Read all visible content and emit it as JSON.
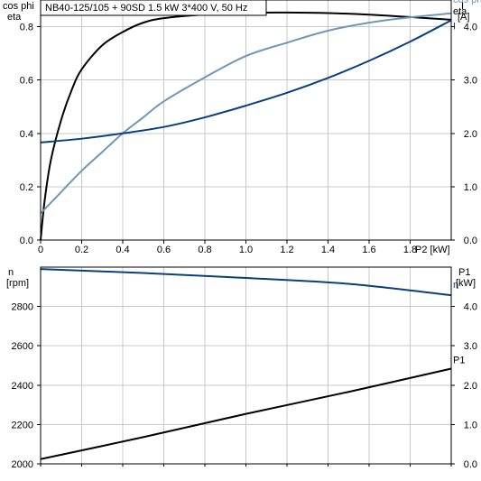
{
  "title": "NB40-125/105 + 90SD   1.5 kW   3*400 V, 50 Hz",
  "chart_data": [
    {
      "type": "line",
      "x_label": "P2 [kW]",
      "x_ticks": [
        "0",
        "0.2",
        "0.4",
        "0.6",
        "0.8",
        "1.0",
        "1.2",
        "1.4",
        "1.6",
        "1.8"
      ],
      "xlim": [
        0,
        2.0
      ],
      "left_axis": {
        "label_line1": "cos phi",
        "label_line2": "eta",
        "ticks": [
          "0.0",
          "0.2",
          "0.4",
          "0.6",
          "0.8"
        ],
        "lim": [
          0,
          0.9
        ]
      },
      "right_axis": {
        "label_line1": "I",
        "label_line2": "[A]",
        "ticks": [
          "0.0",
          "1.0",
          "2.0",
          "3.0",
          "4.0"
        ],
        "lim": [
          0,
          4.5
        ]
      },
      "series": [
        {
          "name": "eta",
          "axis": "left",
          "color": "#000000",
          "points": [
            [
              0,
              0
            ],
            [
              0.02,
              0.15
            ],
            [
              0.05,
              0.3
            ],
            [
              0.1,
              0.45
            ],
            [
              0.15,
              0.56
            ],
            [
              0.2,
              0.64
            ],
            [
              0.3,
              0.73
            ],
            [
              0.4,
              0.78
            ],
            [
              0.5,
              0.815
            ],
            [
              0.6,
              0.832
            ],
            [
              0.8,
              0.846
            ],
            [
              1.0,
              0.852
            ],
            [
              1.2,
              0.853
            ],
            [
              1.4,
              0.851
            ],
            [
              1.6,
              0.845
            ],
            [
              1.8,
              0.836
            ],
            [
              2.0,
              0.826
            ]
          ]
        },
        {
          "name": "cos phi",
          "axis": "left",
          "color": "#7096b8",
          "points": [
            [
              0,
              0.1
            ],
            [
              0.1,
              0.18
            ],
            [
              0.2,
              0.26
            ],
            [
              0.3,
              0.33
            ],
            [
              0.4,
              0.4
            ],
            [
              0.5,
              0.46
            ],
            [
              0.6,
              0.52
            ],
            [
              0.8,
              0.61
            ],
            [
              1.0,
              0.69
            ],
            [
              1.2,
              0.74
            ],
            [
              1.4,
              0.785
            ],
            [
              1.6,
              0.815
            ],
            [
              1.8,
              0.835
            ],
            [
              2.0,
              0.85
            ]
          ]
        },
        {
          "name": "I",
          "axis": "right",
          "color": "#0a3f7f",
          "points": [
            [
              0,
              1.83
            ],
            [
              0.2,
              1.9
            ],
            [
              0.4,
              2.0
            ],
            [
              0.6,
              2.12
            ],
            [
              0.8,
              2.3
            ],
            [
              1.0,
              2.52
            ],
            [
              1.2,
              2.76
            ],
            [
              1.4,
              3.04
            ],
            [
              1.6,
              3.36
            ],
            [
              1.8,
              3.72
            ],
            [
              2.0,
              4.12
            ]
          ]
        }
      ]
    },
    {
      "type": "line",
      "x_label": "",
      "xlim": [
        0,
        2.0
      ],
      "left_axis": {
        "label_line1": "n",
        "label_line2": "[rpm]",
        "ticks": [
          "2000",
          "2200",
          "2400",
          "2600",
          "2800"
        ],
        "lim": [
          2000,
          3000
        ]
      },
      "right_axis": {
        "label_line1": "P1",
        "label_line2": "[kW]",
        "ticks": [
          "0.0",
          "1.0",
          "2.0",
          "3.0",
          "4.0"
        ],
        "lim": [
          0,
          5.0
        ]
      },
      "series": [
        {
          "name": "n",
          "axis": "left",
          "color": "#0a3f7f",
          "points": [
            [
              0,
              2990
            ],
            [
              0.5,
              2970
            ],
            [
              1.0,
              2945
            ],
            [
              1.5,
              2915
            ],
            [
              2.0,
              2857
            ]
          ]
        },
        {
          "name": "P1",
          "axis": "right",
          "color": "#000000",
          "points": [
            [
              0,
              0.12
            ],
            [
              0.5,
              0.68
            ],
            [
              1.0,
              1.27
            ],
            [
              1.5,
              1.83
            ],
            [
              2.0,
              2.42
            ]
          ]
        }
      ]
    }
  ]
}
